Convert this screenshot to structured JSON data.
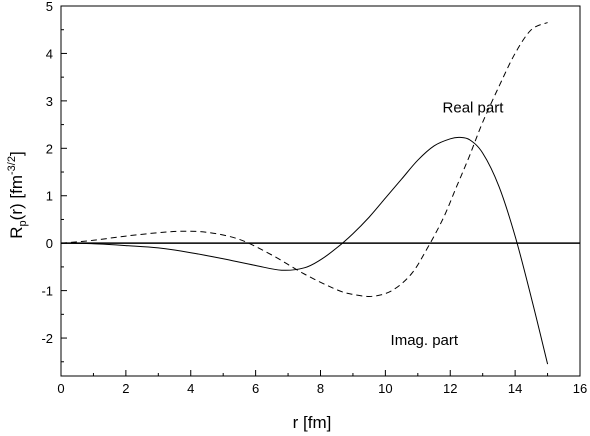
{
  "chart_data": {
    "type": "line",
    "title": "",
    "xlabel": "r [fm]",
    "ylabel": {
      "base": "R",
      "sub": "p",
      "mid": "(r) [fm",
      "sup": "-3/2",
      "end": "]"
    },
    "xlim": [
      0,
      16
    ],
    "ylim": [
      -2.8,
      5
    ],
    "xticks": [
      0,
      2,
      4,
      6,
      8,
      10,
      12,
      14,
      16
    ],
    "yticks": [
      -2,
      -1,
      0,
      1,
      2,
      3,
      4,
      5
    ],
    "grid": false,
    "zero_line": true,
    "annotations": [
      {
        "text": "Real part",
        "x": 12.7,
        "y": 2.75
      },
      {
        "text": "Imag. part",
        "x": 11.2,
        "y": -2.15
      }
    ],
    "series": [
      {
        "style": "solid",
        "x": [
          0,
          1,
          2,
          3,
          4,
          5,
          6,
          6.8,
          7.5,
          8,
          8.5,
          9,
          9.5,
          10,
          10.5,
          11,
          11.5,
          12,
          12.3,
          12.6,
          13,
          13.5,
          14,
          14.5,
          15
        ],
        "y": [
          0,
          -0.01,
          -0.05,
          -0.1,
          -0.2,
          -0.33,
          -0.47,
          -0.57,
          -0.52,
          -0.35,
          -0.1,
          0.2,
          0.55,
          0.95,
          1.35,
          1.75,
          2.05,
          2.2,
          2.23,
          2.18,
          1.9,
          1.2,
          0.15,
          -1.15,
          -2.55
        ]
      },
      {
        "style": "dashed",
        "x": [
          0,
          1,
          2,
          3,
          3.7,
          4.5,
          5.5,
          6.5,
          7.5,
          8.5,
          9,
          9.6,
          10.2,
          10.8,
          11.3,
          11.8,
          12.2,
          12.6,
          13,
          13.5,
          14,
          14.5,
          15
        ],
        "y": [
          0,
          0.06,
          0.15,
          0.22,
          0.25,
          0.23,
          0.08,
          -0.25,
          -0.65,
          -0.98,
          -1.08,
          -1.12,
          -1.0,
          -0.65,
          -0.1,
          0.55,
          1.2,
          1.85,
          2.55,
          3.3,
          4.0,
          4.5,
          4.65
        ]
      }
    ]
  }
}
